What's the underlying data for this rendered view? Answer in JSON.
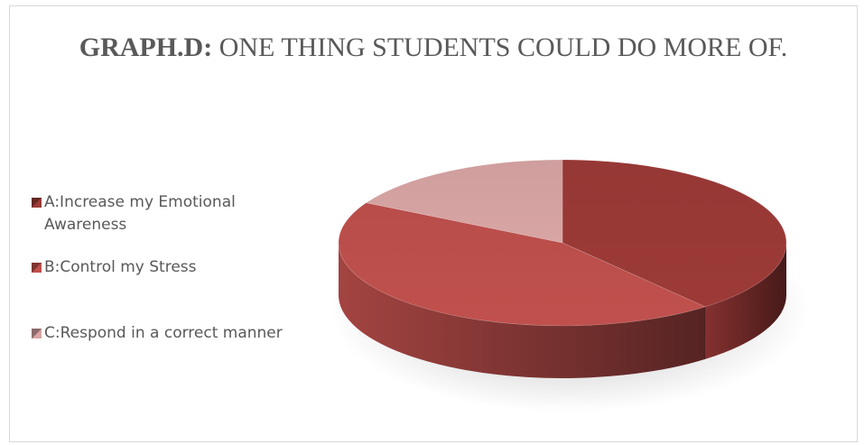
{
  "title_bold": "GRAPH.D:",
  "title_rest": "ONE THING STUDENTS COULD DO MORE OF.",
  "chart_data": {
    "type": "pie",
    "title": "GRAPH.D: ONE THING STUDENTS COULD DO MORE OF.",
    "style": "3d",
    "legend_position": "left",
    "categories": [
      "A:Increase my Emotional Awareness",
      "B:Control my Stress",
      "C:Respond in a correct manner"
    ],
    "values": [
      39,
      44,
      17
    ],
    "colors": [
      "#9c3a37",
      "#c0504d",
      "#d8a5a4"
    ]
  }
}
